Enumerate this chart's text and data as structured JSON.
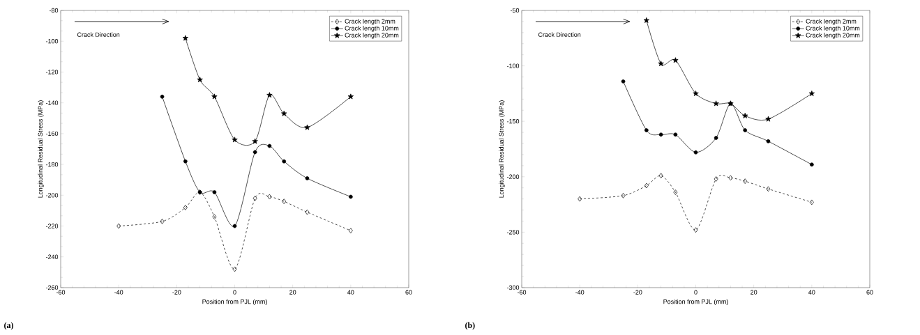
{
  "chart_data": [
    {
      "type": "line",
      "xlabel": "Position from PJL (mm)",
      "ylabel": "Longitudinal Residual Stress (MPa)",
      "annotations": [
        "Crack Direction",
        "(a)"
      ],
      "x": [
        -40,
        -25,
        -17,
        -12,
        -7,
        0,
        7,
        12,
        17,
        25,
        40
      ],
      "series": [
        {
          "name": "Crack length 2mm",
          "color": "#000000",
          "marker": "diamond",
          "line_style": "dashed",
          "values": [
            -220,
            -217,
            -208,
            -198,
            -214,
            -248,
            -202,
            -201,
            -204,
            -211,
            -223
          ]
        },
        {
          "name": "Crack length 10mm",
          "color": "#000000",
          "marker": "circle",
          "line_style": "solid",
          "values": [
            null,
            -136,
            -178,
            -198,
            -198,
            -220,
            -172,
            -168,
            -178,
            -189,
            -201
          ]
        },
        {
          "name": "Crack length 20mm",
          "color": "#000000",
          "marker": "star",
          "line_style": "solid",
          "values": [
            null,
            null,
            -98,
            -125,
            -136,
            -164,
            -165,
            -135,
            -147,
            -156,
            -136
          ]
        }
      ],
      "xlim": [
        -60,
        60
      ],
      "ylim": [
        -260,
        -80
      ],
      "xticks": [
        -60,
        -40,
        -20,
        0,
        20,
        40,
        60
      ],
      "yticks": [
        -260,
        -240,
        -220,
        -200,
        -180,
        -160,
        -140,
        -120,
        -100,
        -80
      ],
      "legend": "top right",
      "grid": false
    },
    {
      "type": "line",
      "xlabel": "Position from PJL (mm)",
      "ylabel": "Longitudinal Residual Stress (MPa)",
      "annotations": [
        "Crack Direction",
        "(b)"
      ],
      "x": [
        -40,
        -25,
        -17,
        -12,
        -7,
        0,
        7,
        12,
        17,
        25,
        40
      ],
      "series": [
        {
          "name": "Crack length 2mm",
          "color": "#000000",
          "marker": "diamond",
          "line_style": "dashed",
          "values": [
            -220,
            -217,
            -208,
            -199,
            -214,
            -248,
            -202,
            -201,
            -204,
            -211,
            -223
          ]
        },
        {
          "name": "Crack length 10mm",
          "color": "#000000",
          "marker": "circle",
          "line_style": "solid",
          "values": [
            null,
            -114,
            -158,
            -162,
            -162,
            -178,
            -165,
            -134,
            -158,
            -168,
            -189
          ]
        },
        {
          "name": "Crack length 20mm",
          "color": "#000000",
          "marker": "star",
          "line_style": "solid",
          "values": [
            null,
            null,
            -59,
            -98,
            -95,
            -125,
            -134,
            -134,
            -145,
            -148,
            -125
          ]
        }
      ],
      "xlim": [
        -60,
        60
      ],
      "ylim": [
        -300,
        -50
      ],
      "xticks": [
        -60,
        -40,
        -20,
        0,
        20,
        40,
        60
      ],
      "yticks": [
        -300,
        -250,
        -200,
        -150,
        -100,
        -50
      ],
      "legend": "top right",
      "grid": false
    }
  ]
}
